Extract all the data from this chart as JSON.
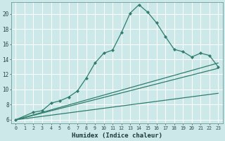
{
  "title": "",
  "xlabel": "Humidex (Indice chaleur)",
  "bg_color": "#cce8e8",
  "grid_color": "#ffffff",
  "line_color": "#2e7d6e",
  "xlim": [
    -0.5,
    23.5
  ],
  "ylim": [
    5.5,
    21.5
  ],
  "yticks": [
    6,
    8,
    10,
    12,
    14,
    16,
    18,
    20
  ],
  "xtick_labels": [
    "0",
    "1",
    "2",
    "3",
    "4",
    "5",
    "6",
    "7",
    "8",
    "9",
    "10",
    "11",
    "12",
    "13",
    "14",
    "15",
    "16",
    "17",
    "18",
    "19",
    "20",
    "21",
    "22",
    "23"
  ],
  "xtick_positions": [
    0,
    1,
    2,
    3,
    4,
    5,
    6,
    7,
    8,
    9,
    10,
    11,
    12,
    13,
    14,
    15,
    16,
    17,
    18,
    19,
    20,
    21,
    22,
    23
  ],
  "curve_x": [
    0,
    2,
    3,
    4,
    5,
    6,
    7,
    8,
    9,
    10,
    11,
    12,
    13,
    14,
    15,
    16,
    17,
    18,
    19,
    20,
    21,
    22,
    23
  ],
  "curve_y": [
    6,
    7,
    7.2,
    8.2,
    8.5,
    9.0,
    9.8,
    11.5,
    13.5,
    14.8,
    15.2,
    17.5,
    20.1,
    21.2,
    20.2,
    18.8,
    17.0,
    15.3,
    15.0,
    14.3,
    14.8,
    14.5,
    13.0
  ],
  "line2_x": [
    0,
    23
  ],
  "line2_y": [
    6,
    13.5
  ],
  "line3_x": [
    0,
    23
  ],
  "line3_y": [
    6,
    12.8
  ],
  "line4_x": [
    0,
    23
  ],
  "line4_y": [
    6,
    9.5
  ]
}
